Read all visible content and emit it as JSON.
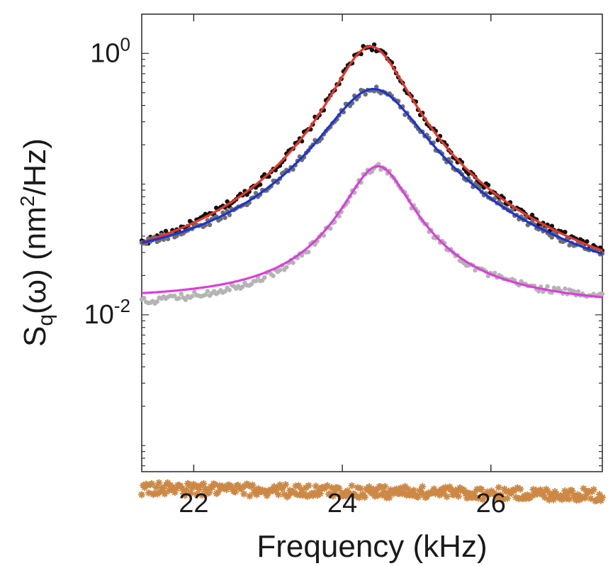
{
  "chart_data": {
    "type": "line",
    "title": "",
    "xlabel": "Frequency (kHz)",
    "ylabel": {
      "main": "S",
      "sub": "q",
      "omega": "(ω)",
      "units_pre": "(nm",
      "units_sup": "2",
      "units_post": "/Hz)"
    },
    "xlim": [
      21.3,
      27.5
    ],
    "ylog": true,
    "ylim_log10": [
      -3.2,
      0.3
    ],
    "x_ticks": [
      {
        "value": 22,
        "label": "22"
      },
      {
        "value": 24,
        "label": "24"
      },
      {
        "value": 26,
        "label": "26"
      }
    ],
    "y_ticks": [
      {
        "exp": 0,
        "base": "10",
        "sup": "0"
      },
      {
        "exp": -2,
        "base": "10",
        "sup": "-2"
      }
    ],
    "series": [
      {
        "name": "data-black",
        "kind": "points",
        "color": "#111111",
        "f0": 24.38,
        "gamma": 0.45,
        "peak": 1.12,
        "bg": 0.0125,
        "bg_slope": -0.0007,
        "x_start": 21.3
      },
      {
        "name": "data-dark-gray",
        "kind": "points",
        "color": "#6e6e6e",
        "f0": 24.42,
        "gamma": 0.6,
        "peak": 0.52,
        "bg": 0.017,
        "bg_slope": -0.0011,
        "x_start": 21.3
      },
      {
        "name": "data-light-gray",
        "kind": "points",
        "color": "#b4b4b4",
        "f0": 24.48,
        "gamma": 0.42,
        "peak": 0.125,
        "bg": 0.0105,
        "bg_slope": 0.0002,
        "x_start": 21.3
      },
      {
        "name": "noise-floor",
        "kind": "stars",
        "color": "#cc8844",
        "constant": 0.00047,
        "slope": -8e-06
      },
      {
        "name": "fit-red",
        "kind": "line",
        "color": "#e8362a",
        "f0": 24.38,
        "gamma": 0.45,
        "peak": 1.12,
        "bg": 0.0125,
        "bg_slope": -0.0007
      },
      {
        "name": "fit-blue",
        "kind": "line",
        "color": "#1b33d8",
        "f0": 24.42,
        "gamma": 0.6,
        "peak": 0.52,
        "bg": 0.017,
        "bg_slope": -0.0011
      },
      {
        "name": "fit-magenta",
        "kind": "line",
        "color": "#dd3ddd",
        "f0": 24.48,
        "gamma": 0.42,
        "peak": 0.125,
        "bg": 0.0125,
        "bg_slope": -0.0002
      }
    ]
  }
}
